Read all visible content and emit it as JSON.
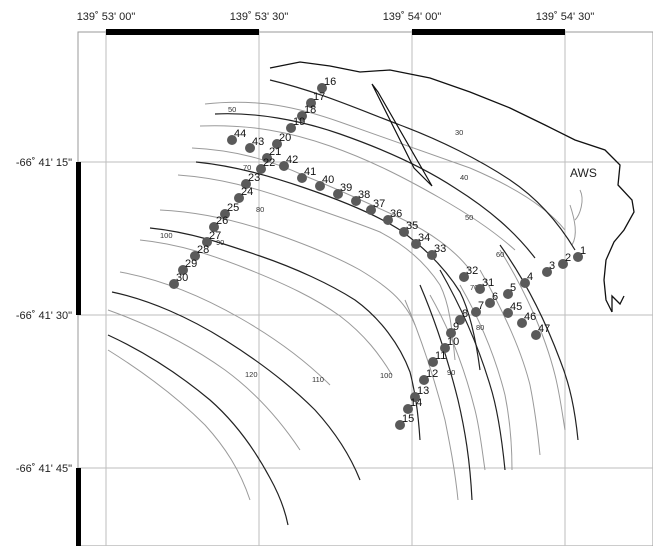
{
  "map": {
    "lon_labels": [
      "139˚ 53' 00\"",
      "139˚ 53' 30\"",
      "139˚ 54' 00\"",
      "139˚ 54' 30\""
    ],
    "lat_labels": [
      "-66˚ 41' 15\"",
      "-66˚ 41' 30\"",
      "-66˚ 41' 45\""
    ],
    "aws_label": "AWS",
    "contour_labels": [
      "30",
      "40",
      "50",
      "50",
      "60",
      "70",
      "70",
      "80",
      "80",
      "90",
      "90",
      "100",
      "100",
      "110",
      "120"
    ],
    "stations": [
      "1",
      "2",
      "3",
      "4",
      "5",
      "6",
      "7",
      "8",
      "9",
      "10",
      "11",
      "12",
      "13",
      "14",
      "15",
      "16",
      "17",
      "18",
      "19",
      "20",
      "21",
      "22",
      "23",
      "24",
      "25",
      "26",
      "27",
      "28",
      "29",
      "30",
      "31",
      "32",
      "33",
      "34",
      "35",
      "36",
      "37",
      "38",
      "39",
      "40",
      "41",
      "42",
      "43",
      "44",
      "45",
      "46",
      "47"
    ],
    "colors": {
      "contour_bold": "#222222",
      "contour_thin": "#9a9a9a",
      "grid": "#bdbdbd",
      "coast": "#111111",
      "station": "#5a5a5a"
    }
  }
}
